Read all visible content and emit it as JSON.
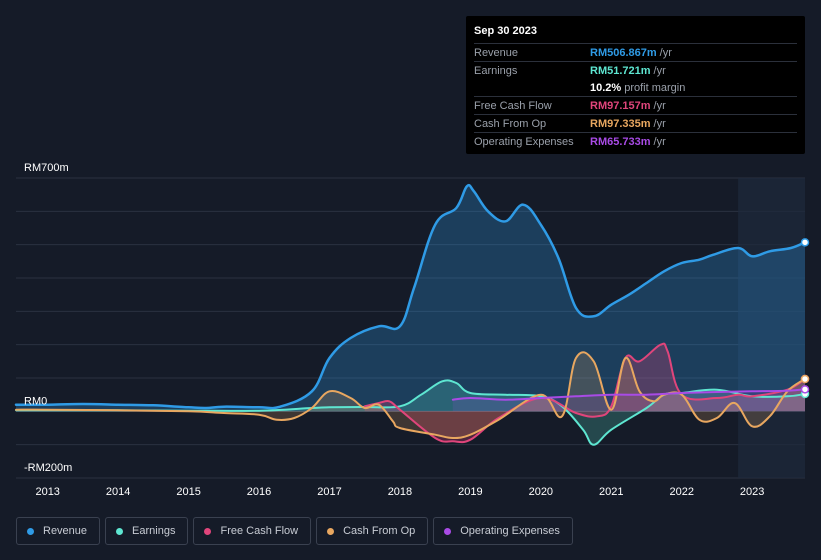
{
  "colors": {
    "revenue": "#2f9be6",
    "earnings": "#5ee6d1",
    "free_cash_flow": "#e0457b",
    "cash_from_op": "#e8a760",
    "operating_expenses": "#a94be6",
    "grid": "#2a3140",
    "background": "#151b28"
  },
  "tooltip": {
    "date": "Sep 30 2023",
    "rows": [
      {
        "label": "Revenue",
        "value": "RM506.867m",
        "unit": "/yr",
        "color": "#2f9be6"
      },
      {
        "label": "Earnings",
        "value": "RM51.721m",
        "unit": "/yr",
        "color": "#5ee6d1"
      },
      {
        "label": "",
        "value": "10.2%",
        "unit": "profit margin",
        "color": "#ffffff"
      },
      {
        "label": "Free Cash Flow",
        "value": "RM97.157m",
        "unit": "/yr",
        "color": "#e0457b"
      },
      {
        "label": "Cash From Op",
        "value": "RM97.335m",
        "unit": "/yr",
        "color": "#e8a760"
      },
      {
        "label": "Operating Expenses",
        "value": "RM65.733m",
        "unit": "/yr",
        "color": "#a94be6"
      }
    ]
  },
  "legend": [
    {
      "label": "Revenue",
      "color": "#2f9be6",
      "icon": "revenue-dot-icon"
    },
    {
      "label": "Earnings",
      "color": "#5ee6d1",
      "icon": "earnings-dot-icon"
    },
    {
      "label": "Free Cash Flow",
      "color": "#e0457b",
      "icon": "free-cash-flow-dot-icon"
    },
    {
      "label": "Cash From Op",
      "color": "#e8a760",
      "icon": "cash-from-op-dot-icon"
    },
    {
      "label": "Operating Expenses",
      "color": "#a94be6",
      "icon": "operating-expenses-dot-icon"
    }
  ],
  "chart_data": {
    "type": "area",
    "title": "",
    "xlabel": "",
    "ylabel": "",
    "ylim": [
      -200,
      700
    ],
    "xlim": [
      2012.55,
      2023.75
    ],
    "y_tick_labels": [
      {
        "value": 700,
        "label": "RM700m"
      },
      {
        "value": 0,
        "label": "RM0"
      },
      {
        "value": -200,
        "label": "-RM200m"
      }
    ],
    "x_tick_labels": [
      "2013",
      "2014",
      "2015",
      "2016",
      "2017",
      "2018",
      "2019",
      "2020",
      "2021",
      "2022",
      "2023"
    ],
    "x_ticks": [
      2013,
      2014,
      2015,
      2016,
      2017,
      2018,
      2019,
      2020,
      2021,
      2022,
      2023
    ],
    "highlight_from": 2022.8,
    "series": [
      {
        "name": "Revenue",
        "key": "revenue",
        "x": [
          2012.55,
          2013.0,
          2013.5,
          2014.0,
          2014.5,
          2015.0,
          2015.25,
          2015.5,
          2016.0,
          2016.3,
          2016.75,
          2017.0,
          2017.3,
          2017.7,
          2018.0,
          2018.2,
          2018.5,
          2018.8,
          2018.95,
          2019.05,
          2019.25,
          2019.5,
          2019.75,
          2020.0,
          2020.25,
          2020.5,
          2020.75,
          2021.0,
          2021.25,
          2021.5,
          2021.75,
          2022.0,
          2022.25,
          2022.45,
          2022.8,
          2023.0,
          2023.25,
          2023.55,
          2023.75
        ],
        "values": [
          20,
          20,
          22,
          20,
          18,
          12,
          10,
          14,
          12,
          14,
          60,
          160,
          220,
          255,
          255,
          370,
          560,
          610,
          675,
          660,
          600,
          570,
          620,
          560,
          460,
          310,
          285,
          320,
          350,
          385,
          420,
          445,
          455,
          470,
          490,
          465,
          480,
          490,
          507
        ]
      },
      {
        "name": "Earnings",
        "key": "earnings",
        "x": [
          2012.55,
          2013.0,
          2014.0,
          2015.0,
          2016.0,
          2016.75,
          2017.0,
          2017.5,
          2018.0,
          2018.3,
          2018.6,
          2018.8,
          2019.0,
          2019.5,
          2020.0,
          2020.3,
          2020.6,
          2020.75,
          2021.0,
          2021.5,
          2021.75,
          2022.0,
          2022.5,
          2023.0,
          2023.5,
          2023.75
        ],
        "values": [
          3,
          3,
          3,
          2,
          2,
          10,
          12,
          13,
          15,
          50,
          90,
          85,
          55,
          50,
          45,
          15,
          -55,
          -100,
          -55,
          10,
          50,
          55,
          65,
          45,
          45,
          52
        ]
      },
      {
        "name": "Free Cash Flow",
        "key": "free_cash_flow",
        "x": [
          2017.5,
          2017.7,
          2017.85,
          2018.0,
          2018.5,
          2018.75,
          2019.0,
          2019.4,
          2020.0,
          2020.5,
          2020.8,
          2021.0,
          2021.2,
          2021.4,
          2021.7,
          2021.8,
          2022.0,
          2022.5,
          2022.8,
          2023.0,
          2023.5,
          2023.75
        ],
        "values": [
          15,
          25,
          30,
          5,
          -80,
          -90,
          -85,
          -20,
          40,
          -5,
          -15,
          15,
          160,
          150,
          200,
          180,
          50,
          40,
          50,
          45,
          65,
          97
        ]
      },
      {
        "name": "Cash From Op",
        "key": "cash_from_op",
        "x": [
          2012.55,
          2013.0,
          2014.0,
          2015.0,
          2015.5,
          2016.0,
          2016.25,
          2016.5,
          2016.75,
          2017.0,
          2017.3,
          2017.5,
          2017.7,
          2017.9,
          2018.0,
          2018.5,
          2018.75,
          2019.0,
          2019.4,
          2020.0,
          2020.3,
          2020.5,
          2020.75,
          2021.0,
          2021.2,
          2021.4,
          2021.6,
          2021.75,
          2022.0,
          2022.25,
          2022.5,
          2022.75,
          2023.0,
          2023.25,
          2023.5,
          2023.75
        ],
        "values": [
          5,
          5,
          3,
          0,
          -5,
          -10,
          -25,
          -20,
          10,
          60,
          40,
          10,
          20,
          -30,
          -50,
          -70,
          -80,
          -70,
          -25,
          50,
          -15,
          160,
          150,
          5,
          160,
          60,
          30,
          50,
          50,
          -25,
          -20,
          25,
          -45,
          -15,
          60,
          97
        ]
      },
      {
        "name": "Operating Expenses",
        "key": "operating_expenses",
        "x": [
          2018.75,
          2019.0,
          2019.5,
          2020.0,
          2020.5,
          2021.0,
          2021.5,
          2022.0,
          2022.5,
          2023.0,
          2023.5,
          2023.75
        ],
        "values": [
          35,
          40,
          35,
          40,
          45,
          50,
          50,
          55,
          58,
          60,
          62,
          66
        ]
      }
    ]
  }
}
